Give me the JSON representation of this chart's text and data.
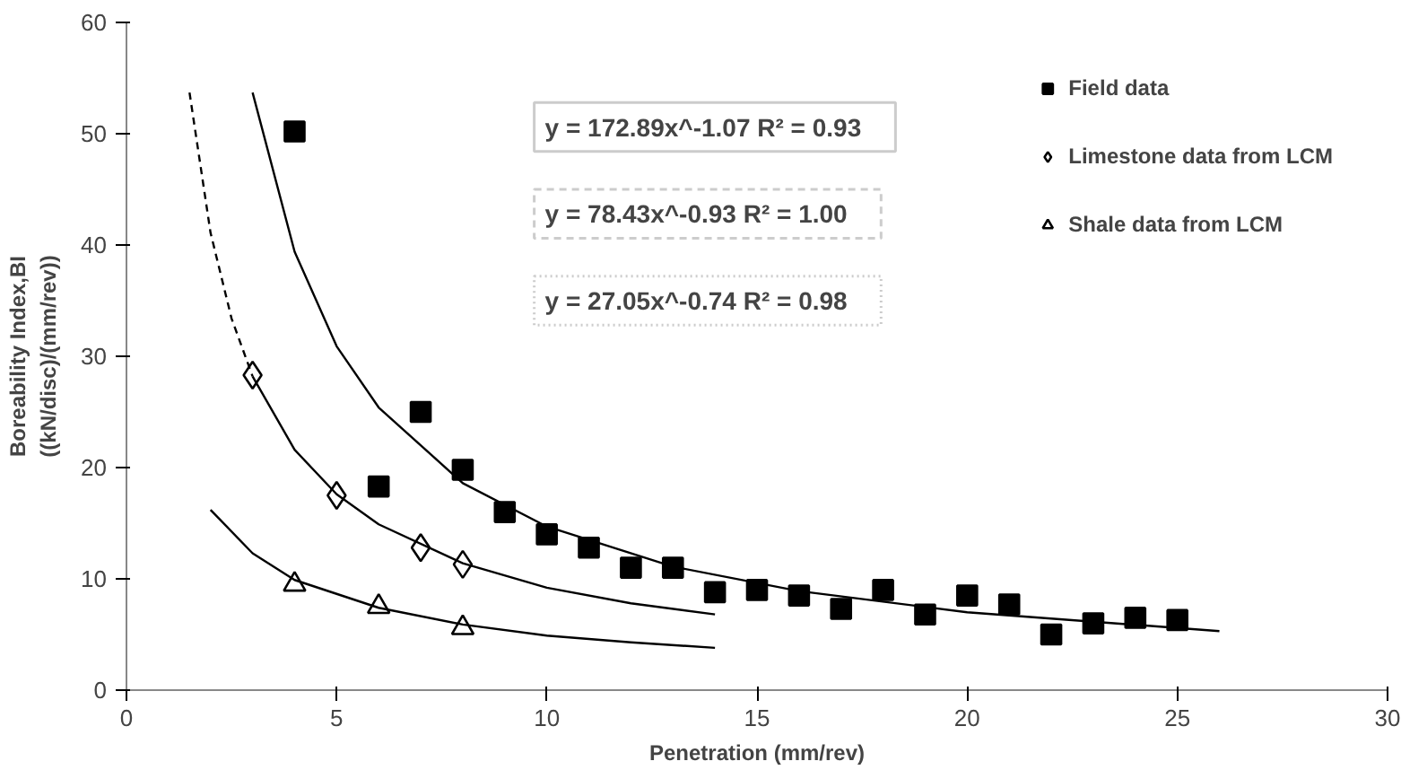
{
  "chart_data": {
    "type": "scatter",
    "xlabel": "Penetration (mm/rev)",
    "ylabel": "Boreability Index,BI\n((kN/disc)/(mm/rev))",
    "xlim": [
      0,
      30
    ],
    "ylim": [
      0,
      60
    ],
    "xticks": [
      0,
      5,
      10,
      15,
      20,
      25,
      30
    ],
    "yticks": [
      0,
      10,
      20,
      30,
      40,
      50,
      60
    ],
    "grid": false,
    "legend": "top right",
    "annotations": [
      "y = 172.89x^-1.07  R² = 0.93",
      "y = 78.43x^-0.93  R² = 1.00",
      "y = 27.05x^-0.74  R² = 0.98"
    ],
    "series": [
      {
        "name": "Field data",
        "marker": "square",
        "color": "#000000",
        "x": [
          4,
          6,
          7,
          8,
          9,
          10,
          11,
          12,
          13,
          14,
          15,
          16,
          17,
          18,
          19,
          20,
          21,
          22,
          23,
          24,
          25
        ],
        "values": [
          50.2,
          18.3,
          25,
          19.8,
          16,
          14,
          12.8,
          11,
          11,
          8.8,
          9,
          8.5,
          7.3,
          9,
          6.8,
          8.5,
          7.7,
          5,
          6,
          6.5,
          6.3
        ]
      },
      {
        "name": "Limestone data from LCM",
        "marker": "diamond",
        "color": "#000000",
        "x": [
          3,
          5,
          7,
          8
        ],
        "values": [
          28.3,
          17.5,
          12.8,
          11.3
        ]
      },
      {
        "name": "Shale data from LCM",
        "marker": "triangle",
        "color": "#000000",
        "x": [
          4,
          6,
          8
        ],
        "values": [
          9.5,
          7.5,
          5.6
        ]
      },
      {
        "type": "line",
        "line_style": "solid",
        "color": "#000000",
        "x": [
          3,
          4,
          5,
          6,
          8,
          10,
          13,
          16,
          20,
          26
        ],
        "values": [
          53.7,
          39.4,
          30.9,
          25.4,
          18.6,
          14.7,
          11.1,
          8.9,
          7.0,
          5.3
        ]
      },
      {
        "type": "line",
        "line_style": "dashed",
        "color": "#000000",
        "x": [
          1.5,
          2,
          2.5,
          3
        ],
        "values": [
          53.7,
          41.1,
          33.4,
          28.2
        ]
      },
      {
        "type": "line",
        "line_style": "solid",
        "color": "#000000",
        "x": [
          3,
          4,
          5,
          6,
          8,
          10,
          12,
          14
        ],
        "values": [
          28.2,
          21.6,
          17.6,
          14.9,
          11.4,
          9.2,
          7.8,
          6.8
        ]
      },
      {
        "type": "line",
        "line_style": "solid",
        "color": "#000000",
        "x": [
          2,
          3,
          4,
          6,
          8,
          10,
          12,
          14
        ],
        "values": [
          16.2,
          12.3,
          9.9,
          7.4,
          5.9,
          4.9,
          4.3,
          3.8
        ]
      }
    ]
  }
}
